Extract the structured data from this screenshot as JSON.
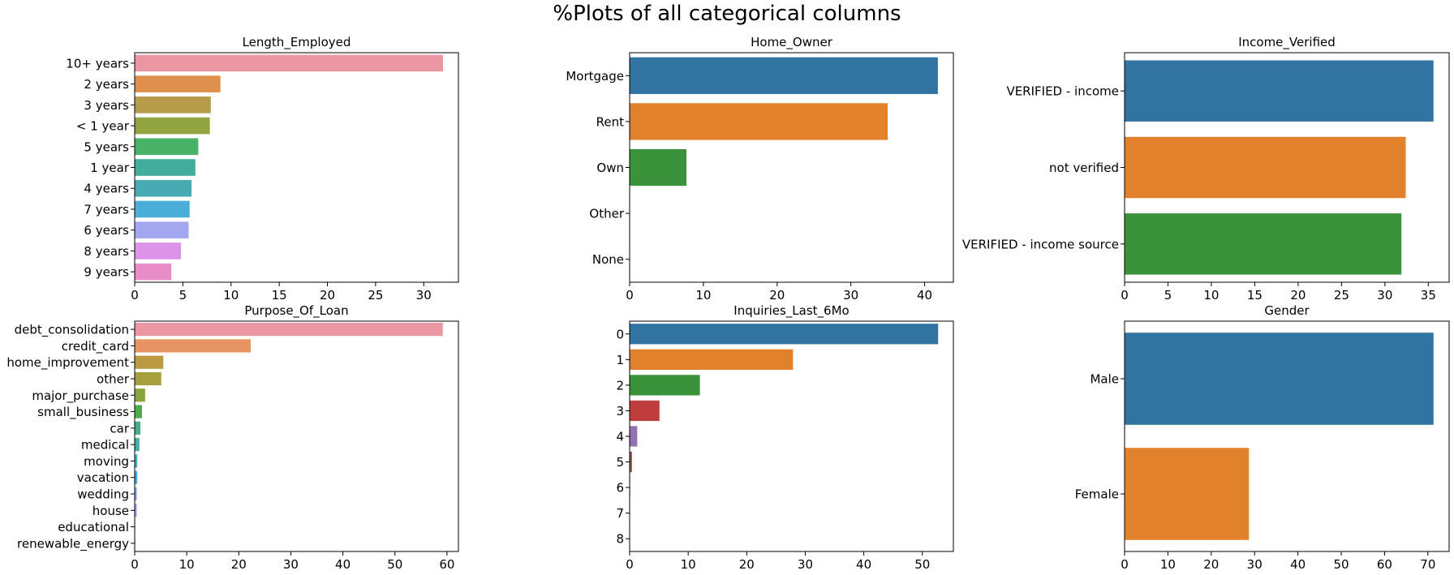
{
  "figure": {
    "title": "%Plots of all categorical columns"
  },
  "chart_data": [
    {
      "type": "bar",
      "orientation": "horizontal",
      "title": "Length_Employed",
      "xlabel": "",
      "ylabel": "",
      "categories": [
        "10+ years",
        "2 years",
        "3 years",
        "< 1 year",
        "5 years",
        "1 year",
        "4 years",
        "7 years",
        "6 years",
        "8 years",
        "9 years"
      ],
      "values": [
        32.0,
        8.9,
        7.9,
        7.8,
        6.6,
        6.3,
        5.9,
        5.7,
        5.6,
        4.8,
        3.8
      ],
      "colors": [
        "#ea96a3",
        "#de8f4e",
        "#b69c4b",
        "#92a441",
        "#48b266",
        "#42ad9d",
        "#48abb4",
        "#4aaed9",
        "#a3a7ef",
        "#dd93e7",
        "#e98dc8"
      ],
      "xlim": [
        0,
        33.6
      ],
      "xticks": [
        0,
        5,
        10,
        15,
        20,
        25,
        30
      ],
      "grid": false
    },
    {
      "type": "bar",
      "orientation": "horizontal",
      "title": "Home_Owner",
      "xlabel": "",
      "ylabel": "",
      "categories": [
        "Mortgage",
        "Rent",
        "Own",
        "Other",
        "None"
      ],
      "values": [
        41.8,
        35.0,
        7.7,
        0.0,
        0.0
      ],
      "colors": [
        "#3174a1",
        "#e1812c",
        "#3a923a",
        "#c03d3e",
        "#9372b2"
      ],
      "xlim": [
        0,
        43.9
      ],
      "xticks": [
        0,
        10,
        20,
        30,
        40
      ],
      "grid": false
    },
    {
      "type": "bar",
      "orientation": "horizontal",
      "title": "Income_Verified",
      "xlabel": "",
      "ylabel": "",
      "categories": [
        "VERIFIED - income",
        "not verified",
        "VERIFIED - income source"
      ],
      "values": [
        35.6,
        32.4,
        31.9
      ],
      "colors": [
        "#3174a1",
        "#e1812c",
        "#3a923a"
      ],
      "xlim": [
        0,
        37.4
      ],
      "xticks": [
        0,
        5,
        10,
        15,
        20,
        25,
        30,
        35
      ],
      "grid": false
    },
    {
      "type": "bar",
      "orientation": "horizontal",
      "title": "Purpose_Of_Loan",
      "xlabel": "",
      "ylabel": "",
      "categories": [
        "debt_consolidation",
        "credit_card",
        "home_improvement",
        "other",
        "major_purchase",
        "small_business",
        "car",
        "medical",
        "moving",
        "vacation",
        "wedding",
        "house",
        "educational",
        "renewable_energy"
      ],
      "values": [
        59.2,
        22.3,
        5.5,
        5.1,
        2.0,
        1.4,
        1.1,
        0.9,
        0.5,
        0.5,
        0.4,
        0.4,
        0.1,
        0.1
      ],
      "colors": [
        "#ea96a3",
        "#e69461",
        "#bb9a43",
        "#a59f3e",
        "#86a53d",
        "#4eac4c",
        "#47ad8a",
        "#45aea7",
        "#47adbe",
        "#4aa9de",
        "#8c9ff0",
        "#ae95ef",
        "#e48eda",
        "#e88fb0"
      ],
      "xlim": [
        0,
        62.2
      ],
      "xticks": [
        0,
        10,
        20,
        30,
        40,
        50,
        60
      ],
      "grid": false
    },
    {
      "type": "bar",
      "orientation": "horizontal",
      "title": "Inquiries_Last_6Mo",
      "xlabel": "",
      "ylabel": "",
      "categories": [
        "0",
        "1",
        "2",
        "3",
        "4",
        "5",
        "6",
        "7",
        "8"
      ],
      "values": [
        52.7,
        27.9,
        12.0,
        5.1,
        1.3,
        0.4,
        0.1,
        0.05,
        0.02
      ],
      "colors": [
        "#3174a1",
        "#e1812c",
        "#3a923a",
        "#c03d3e",
        "#9372b2",
        "#845b53",
        "#d684bd",
        "#7f7f7f",
        "#a9aa35"
      ],
      "xlim": [
        0,
        55.3
      ],
      "xticks": [
        0,
        10,
        20,
        30,
        40,
        50
      ],
      "grid": false
    },
    {
      "type": "bar",
      "orientation": "horizontal",
      "title": "Gender",
      "xlabel": "",
      "ylabel": "",
      "categories": [
        "Male",
        "Female"
      ],
      "values": [
        71.3,
        28.7
      ],
      "colors": [
        "#3174a1",
        "#e1812c"
      ],
      "xlim": [
        0,
        74.9
      ],
      "xticks": [
        0,
        10,
        20,
        30,
        40,
        50,
        60,
        70
      ],
      "grid": false
    }
  ]
}
